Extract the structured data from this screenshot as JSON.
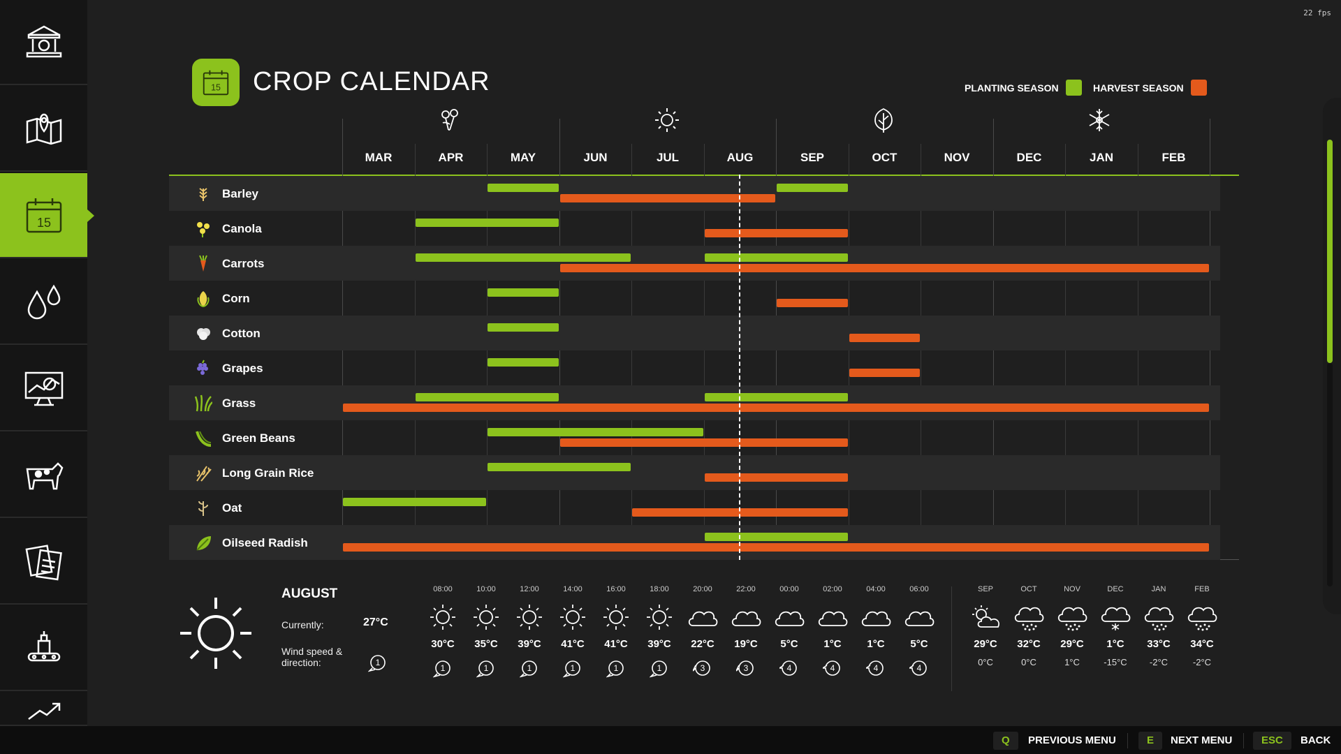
{
  "fps": "22 fps",
  "header": {
    "title": "CROP CALENDAR",
    "calendar_day": "15"
  },
  "legend": {
    "planting_label": "PLANTING SEASON",
    "harvest_label": "HARVEST SEASON",
    "planting_color": "#8cc21d",
    "harvest_color": "#e45a1c"
  },
  "sidebar": {
    "items": [
      {
        "icon": "bank-icon",
        "active": false
      },
      {
        "icon": "map-icon",
        "active": false
      },
      {
        "icon": "calendar-icon",
        "active": true,
        "label": "15"
      },
      {
        "icon": "water-drops-icon",
        "active": false
      },
      {
        "icon": "statistics-monitor-icon",
        "active": false
      },
      {
        "icon": "cow-icon",
        "active": false
      },
      {
        "icon": "contracts-icon",
        "active": false
      },
      {
        "icon": "production-icon",
        "active": false
      },
      {
        "icon": "prices-trend-icon",
        "active": false
      }
    ]
  },
  "chart_data": {
    "type": "gantt",
    "months": [
      "MAR",
      "APR",
      "MAY",
      "JUN",
      "JUL",
      "AUG",
      "SEP",
      "OCT",
      "NOV",
      "DEC",
      "JAN",
      "FEB"
    ],
    "season_icons": [
      "spring-flower-icon",
      "summer-sun-icon",
      "autumn-leaf-icon",
      "winter-snowflake-icon"
    ],
    "current_month": "AUG",
    "crops": [
      {
        "name": "Barley",
        "icon": "barley-icon",
        "planting": [
          [
            "MAY",
            "MAY"
          ],
          [
            "SEP",
            "SEP"
          ]
        ],
        "harvest": [
          [
            "JUN",
            "AUG"
          ]
        ]
      },
      {
        "name": "Canola",
        "icon": "canola-icon",
        "planting": [
          [
            "APR",
            "MAY"
          ]
        ],
        "harvest": [
          [
            "AUG",
            "SEP"
          ]
        ]
      },
      {
        "name": "Carrots",
        "icon": "carrot-icon",
        "planting": [
          [
            "APR",
            "JUN"
          ],
          [
            "AUG",
            "SEP"
          ]
        ],
        "harvest": [
          [
            "JUN",
            "FEB"
          ]
        ]
      },
      {
        "name": "Corn",
        "icon": "corn-icon",
        "planting": [
          [
            "MAY",
            "MAY"
          ]
        ],
        "harvest": [
          [
            "SEP",
            "SEP"
          ]
        ]
      },
      {
        "name": "Cotton",
        "icon": "cotton-icon",
        "planting": [
          [
            "MAY",
            "MAY"
          ]
        ],
        "harvest": [
          [
            "OCT",
            "OCT"
          ]
        ]
      },
      {
        "name": "Grapes",
        "icon": "grapes-icon",
        "planting": [
          [
            "MAY",
            "MAY"
          ]
        ],
        "harvest": [
          [
            "OCT",
            "OCT"
          ]
        ]
      },
      {
        "name": "Grass",
        "icon": "grass-icon",
        "planting": [
          [
            "APR",
            "MAY"
          ],
          [
            "AUG",
            "SEP"
          ]
        ],
        "harvest": [
          [
            "MAR",
            "FEB"
          ]
        ]
      },
      {
        "name": "Green Beans",
        "icon": "green-beans-icon",
        "planting": [
          [
            "MAY",
            "JUL"
          ]
        ],
        "harvest": [
          [
            "JUN",
            "SEP"
          ]
        ]
      },
      {
        "name": "Long Grain Rice",
        "icon": "rice-icon",
        "planting": [
          [
            "MAY",
            "JUN"
          ]
        ],
        "harvest": [
          [
            "AUG",
            "SEP"
          ]
        ]
      },
      {
        "name": "Oat",
        "icon": "oat-icon",
        "planting": [
          [
            "MAR",
            "APR"
          ]
        ],
        "harvest": [
          [
            "JUL",
            "SEP"
          ]
        ]
      },
      {
        "name": "Oilseed Radish",
        "icon": "oilseed-radish-icon",
        "planting": [
          [
            "AUG",
            "SEP"
          ]
        ],
        "harvest": [
          [
            "MAR",
            "FEB"
          ]
        ]
      }
    ]
  },
  "weather": {
    "month": "AUGUST",
    "currently_label": "Currently:",
    "currently_value": "27°C",
    "wind_label_1": "Wind speed &",
    "wind_label_2": "direction:",
    "wind_current": "1",
    "hourly": [
      {
        "time": "08:00",
        "icon": "sun-icon",
        "temp": "30°C",
        "wind": "1"
      },
      {
        "time": "10:00",
        "icon": "sun-icon",
        "temp": "35°C",
        "wind": "1"
      },
      {
        "time": "12:00",
        "icon": "sun-icon",
        "temp": "39°C",
        "wind": "1"
      },
      {
        "time": "14:00",
        "icon": "sun-icon",
        "temp": "41°C",
        "wind": "1"
      },
      {
        "time": "16:00",
        "icon": "sun-icon",
        "temp": "41°C",
        "wind": "1"
      },
      {
        "time": "18:00",
        "icon": "sun-icon",
        "temp": "39°C",
        "wind": "1"
      },
      {
        "time": "20:00",
        "icon": "cloud-icon",
        "temp": "22°C",
        "wind": "3"
      },
      {
        "time": "22:00",
        "icon": "cloud-icon",
        "temp": "19°C",
        "wind": "3"
      },
      {
        "time": "00:00",
        "icon": "cloud-icon",
        "temp": "5°C",
        "wind": "4"
      },
      {
        "time": "02:00",
        "icon": "cloud-icon",
        "temp": "1°C",
        "wind": "4"
      },
      {
        "time": "04:00",
        "icon": "cloud-icon",
        "temp": "1°C",
        "wind": "4"
      },
      {
        "time": "06:00",
        "icon": "cloud-icon",
        "temp": "5°C",
        "wind": "4"
      }
    ],
    "monthly": [
      {
        "month": "SEP",
        "icon": "partly-cloudy-icon",
        "high": "29°C",
        "low": "0°C"
      },
      {
        "month": "OCT",
        "icon": "rain-cloud-icon",
        "high": "32°C",
        "low": "0°C"
      },
      {
        "month": "NOV",
        "icon": "rain-cloud-icon",
        "high": "29°C",
        "low": "1°C"
      },
      {
        "month": "DEC",
        "icon": "snow-cloud-icon",
        "high": "1°C",
        "low": "-15°C"
      },
      {
        "month": "JAN",
        "icon": "rain-cloud-icon",
        "high": "33°C",
        "low": "-2°C"
      },
      {
        "month": "FEB",
        "icon": "rain-cloud-icon",
        "high": "34°C",
        "low": "-2°C"
      }
    ]
  },
  "footer": {
    "prev_key": "Q",
    "prev_label": "PREVIOUS MENU",
    "next_key": "E",
    "next_label": "NEXT MENU",
    "back_key": "ESC",
    "back_label": "BACK"
  }
}
